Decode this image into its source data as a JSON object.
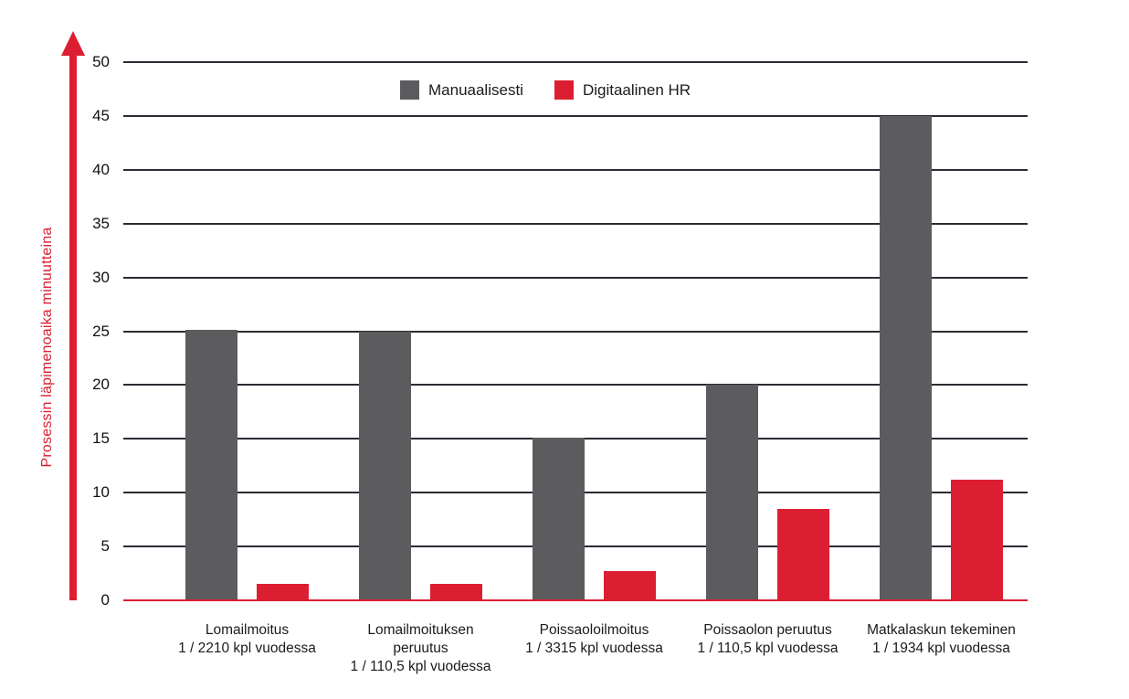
{
  "chart_data": {
    "type": "bar",
    "title": "",
    "xlabel": "",
    "ylabel": "Prosessin läpimenoaika minuutteina",
    "ylim": [
      0,
      50
    ],
    "ytick_step": 5,
    "grid": "horizontal",
    "legend_position": "top-center",
    "categories": [
      {
        "name": "Lomailmoitus",
        "frequency": "1 / 2210 kpl vuodessa",
        "display_lines": [
          "Lomailmoitus",
          "1 / 2210 kpl vuodessa"
        ]
      },
      {
        "name": "Lomailmoituksen peruutus",
        "frequency": "1 / 110,5 kpl vuodessa",
        "display_lines": [
          "Lomailmoituksen",
          "peruutus",
          "1 / 110,5 kpl vuodessa"
        ]
      },
      {
        "name": "Poissaoloilmoitus",
        "frequency": "1 / 3315 kpl vuodessa",
        "display_lines": [
          "Poissaoloilmoitus",
          "1 / 3315 kpl vuodessa"
        ]
      },
      {
        "name": "Poissaolon peruutus",
        "frequency": "1 / 110,5 kpl vuodessa",
        "display_lines": [
          "Poissaolon peruutus",
          "1 / 110,5 kpl vuodessa"
        ]
      },
      {
        "name": "Matkalaskun tekeminen",
        "frequency": "1 / 1934 kpl vuodessa",
        "display_lines": [
          "Matkalaskun tekeminen",
          "1 / 1934 kpl vuodessa"
        ]
      }
    ],
    "series": [
      {
        "name": "Manuaalisesti",
        "color": "#5c5c5e",
        "values": [
          25.1,
          25,
          15.1,
          20,
          45
        ]
      },
      {
        "name": "Digitaalinen HR",
        "color": "#dc1e32",
        "values": [
          1.5,
          1.5,
          2.7,
          8.5,
          11.2
        ]
      }
    ],
    "colors": {
      "axis_arrow": "#dc1e32",
      "x_baseline": "#dc1e32",
      "y_axis_title": "#dc1e32",
      "gridline": "#2b2b33",
      "label_text": "#1b1b1b"
    }
  }
}
